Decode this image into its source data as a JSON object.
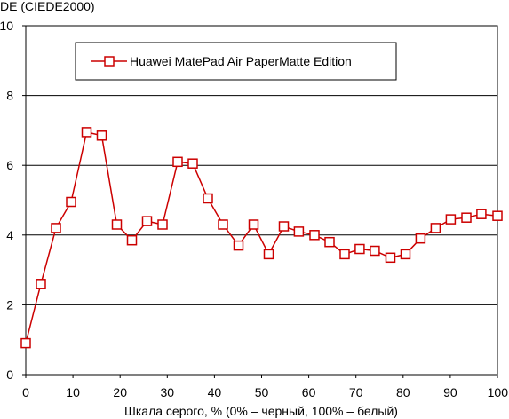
{
  "chart_data": {
    "type": "line",
    "title": "",
    "ylabel": "DE (CIEDE2000)",
    "xlabel": "Шкала серого, % (0% – черный, 100% – белый)",
    "xlim": [
      0,
      100
    ],
    "ylim": [
      0,
      10
    ],
    "xticks": [
      "0",
      "10",
      "20",
      "30",
      "40",
      "50",
      "60",
      "70",
      "80",
      "90",
      "100"
    ],
    "yticks": [
      "0",
      "2",
      "4",
      "6",
      "8",
      "10"
    ],
    "grid": "horizontal",
    "legend": "top",
    "series": [
      {
        "name": "Huawei MatePad Air PaperMatte Edition",
        "color": "#cc0000",
        "x": [
          0,
          3.2,
          6.4,
          9.6,
          12.9,
          16.1,
          19.3,
          22.5,
          25.7,
          29.0,
          32.2,
          35.4,
          38.6,
          41.8,
          45.1,
          48.3,
          51.5,
          54.7,
          57.9,
          61.2,
          64.4,
          67.6,
          70.8,
          74.0,
          77.3,
          80.5,
          83.7,
          86.9,
          90.1,
          93.4,
          96.6,
          100
        ],
        "y": [
          0.9,
          2.6,
          4.2,
          4.95,
          6.95,
          6.85,
          4.3,
          3.85,
          4.4,
          4.3,
          6.1,
          6.05,
          5.05,
          4.3,
          3.7,
          4.3,
          3.45,
          4.25,
          4.1,
          4.0,
          3.8,
          3.45,
          3.6,
          3.55,
          3.35,
          3.45,
          3.9,
          4.2,
          4.45,
          4.5,
          4.6,
          4.55
        ]
      }
    ]
  }
}
